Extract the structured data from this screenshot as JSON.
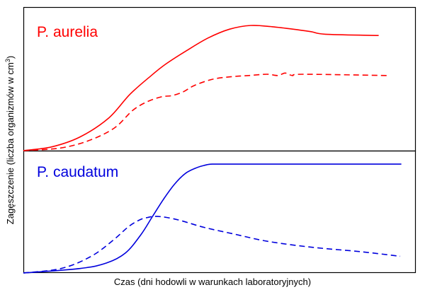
{
  "chart_data": [
    {
      "type": "line",
      "title": "P. aurelia",
      "title_color": "#ff0000",
      "xlabel": "Czas (dni hodowli w warunkach laboratoryjnych)",
      "ylabel": "Zagęszczenie (liczba organizmów w cm",
      "ylabel_superscript": "3",
      "ylabel_close": ")",
      "xlim": [
        0,
        100
      ],
      "ylim": [
        0,
        100
      ],
      "grid": false,
      "series": [
        {
          "color": "#ff0000",
          "dash": "solid",
          "x": [
            0,
            8,
            16,
            24,
            30,
            36,
            40,
            46,
            52,
            58,
            64,
            70,
            76,
            81,
            85,
            100
          ],
          "y": [
            0,
            3,
            11,
            26,
            45,
            60,
            69,
            80,
            90,
            97,
            100,
            99,
            97,
            95,
            93,
            92
          ]
        },
        {
          "color": "#ff0000",
          "dash": "dashed",
          "x": [
            0,
            10,
            18,
            25,
            30,
            34,
            38,
            41,
            44,
            47,
            52,
            57,
            62,
            67,
            70,
            72,
            74,
            77,
            100
          ],
          "y": [
            0,
            2,
            8,
            18,
            32,
            39,
            43,
            44,
            47,
            52,
            57,
            59,
            60,
            61,
            60,
            62,
            60,
            61,
            60
          ]
        }
      ]
    },
    {
      "type": "line",
      "title": "P. caudatum",
      "title_color": "#0000dd",
      "xlim": [
        0,
        100
      ],
      "ylim": [
        0,
        100
      ],
      "grid": false,
      "series": [
        {
          "color": "#0000dd",
          "dash": "solid",
          "x": [
            0,
            15,
            22,
            27,
            31,
            34,
            37,
            40,
            43,
            46,
            48,
            50,
            56,
            65,
            100
          ],
          "y": [
            0,
            4,
            9,
            18,
            34,
            50,
            66,
            80,
            90,
            95,
            97,
            98,
            98,
            98,
            98
          ]
        },
        {
          "color": "#0000dd",
          "dash": "dashed",
          "x": [
            0,
            10,
            18,
            24,
            28,
            31,
            33,
            35,
            38,
            42,
            48,
            56,
            64,
            72,
            80,
            90,
            100
          ],
          "y": [
            0,
            4,
            15,
            30,
            42,
            48,
            50,
            51,
            50,
            47,
            41,
            35,
            29,
            25,
            22,
            19,
            15
          ]
        }
      ]
    }
  ]
}
